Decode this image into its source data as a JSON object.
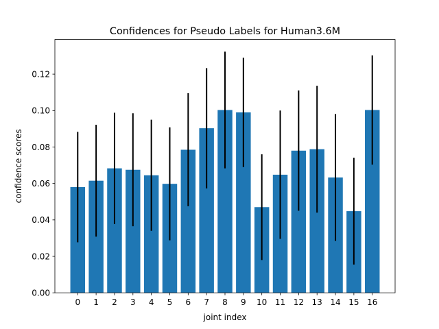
{
  "chart_data": {
    "type": "bar",
    "title": "Confidences for Pseudo Labels for Human3.6M",
    "xlabel": "joint index",
    "ylabel": "confidence scores",
    "categories": [
      "0",
      "1",
      "2",
      "3",
      "4",
      "5",
      "6",
      "7",
      "8",
      "9",
      "10",
      "11",
      "12",
      "13",
      "14",
      "15",
      "16"
    ],
    "values": [
      0.058,
      0.0615,
      0.0683,
      0.0675,
      0.0645,
      0.0598,
      0.0785,
      0.0903,
      0.1003,
      0.099,
      0.047,
      0.0648,
      0.078,
      0.0788,
      0.0633,
      0.0448,
      0.1003
    ],
    "errors": [
      0.0303,
      0.0307,
      0.0305,
      0.031,
      0.0305,
      0.031,
      0.031,
      0.033,
      0.032,
      0.03,
      0.029,
      0.0352,
      0.033,
      0.0348,
      0.0348,
      0.0293,
      0.03
    ],
    "ylim": [
      0,
      0.139
    ],
    "yticks": [
      "0.00",
      "0.02",
      "0.04",
      "0.06",
      "0.08",
      "0.10",
      "0.12"
    ],
    "bar_color": "#1f77b4",
    "error_color": "#000000",
    "grid": false
  }
}
